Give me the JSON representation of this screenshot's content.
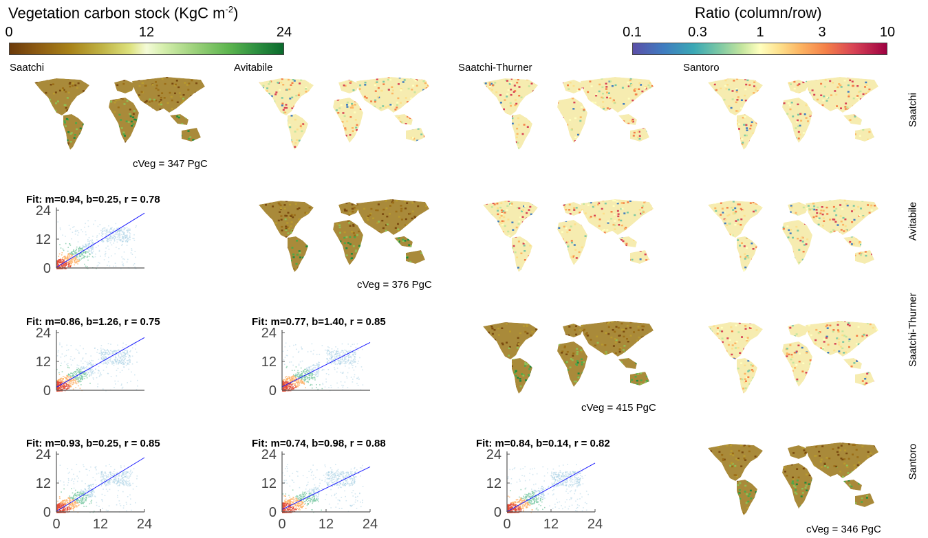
{
  "chart_data": {
    "type": "heatmap",
    "colorbars": {
      "stock": {
        "title": "Vegetation carbon stock (KgC m",
        "title_sup": "-2",
        "title_end": ")",
        "ticks": [
          "0",
          "12",
          "24"
        ],
        "range": [
          0,
          24
        ]
      },
      "ratio": {
        "title": "Ratio (column/row)",
        "ticks": [
          "0.1",
          "0.3",
          "1",
          "3",
          "10"
        ],
        "scale": "log",
        "range": [
          0.1,
          10
        ]
      }
    },
    "datasets": [
      "Saatchi",
      "Avitabile",
      "Saatchi-Thurner",
      "Santoro"
    ],
    "cveg": [
      "cVeg = 347 PgC",
      "cVeg = 376 PgC",
      "cVeg = 415 PgC",
      "cVeg = 346 PgC"
    ],
    "scatter_fits": [
      {
        "row": 1,
        "col": 0,
        "label": "Fit: m=0.94, b=0.25, r = 0.78",
        "m": 0.94,
        "b": 0.25,
        "r": 0.78
      },
      {
        "row": 2,
        "col": 0,
        "label": "Fit: m=0.86, b=1.26, r = 0.75",
        "m": 0.86,
        "b": 1.26,
        "r": 0.75
      },
      {
        "row": 2,
        "col": 1,
        "label": "Fit: m=0.77, b=1.40, r = 0.85",
        "m": 0.77,
        "b": 1.4,
        "r": 0.85
      },
      {
        "row": 3,
        "col": 0,
        "label": "Fit: m=0.93, b=0.25, r = 0.85",
        "m": 0.93,
        "b": 0.25,
        "r": 0.85
      },
      {
        "row": 3,
        "col": 1,
        "label": "Fit: m=0.74, b=0.98, r = 0.88",
        "m": 0.74,
        "b": 0.98,
        "r": 0.88
      },
      {
        "row": 3,
        "col": 2,
        "label": "Fit: m=0.84, b=0.14, r = 0.82",
        "m": 0.84,
        "b": 0.14,
        "r": 0.82
      }
    ],
    "axis_ticks": [
      "0",
      "12",
      "24"
    ],
    "xlim": [
      0,
      24
    ],
    "ylim": [
      0,
      24
    ]
  }
}
